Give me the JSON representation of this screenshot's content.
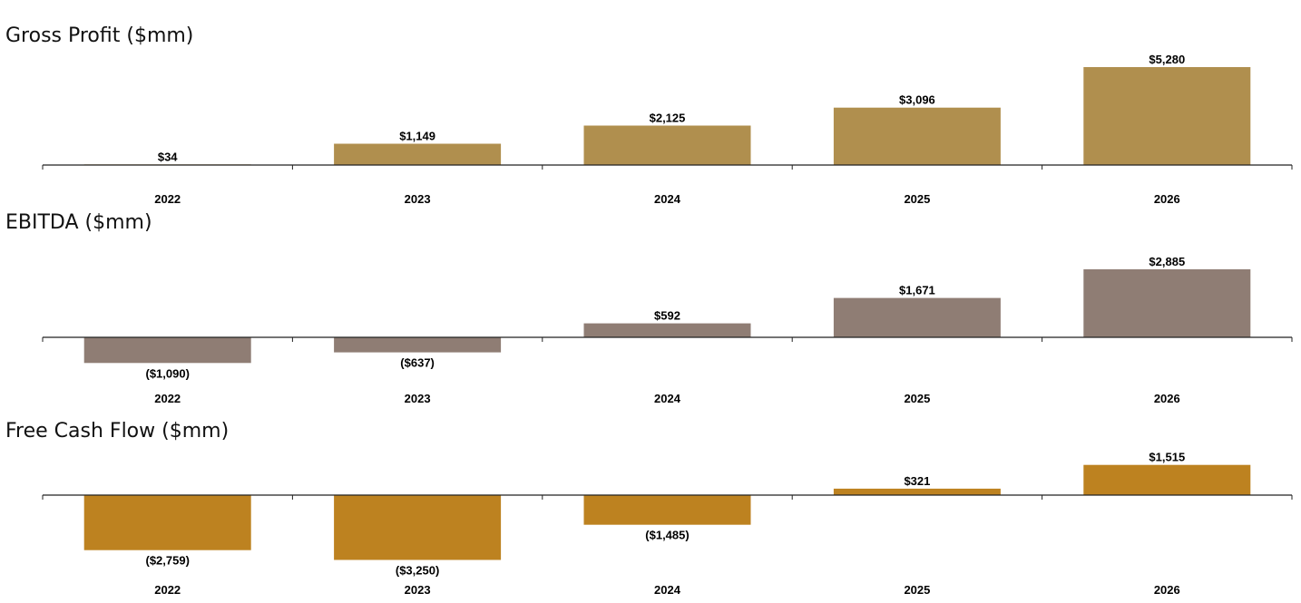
{
  "chart_data": [
    {
      "type": "bar",
      "title": "Gross Profit ($mm)",
      "categories": [
        "2022",
        "2023",
        "2024",
        "2025",
        "2026"
      ],
      "values": [
        34,
        1149,
        2125,
        3096,
        5280
      ],
      "value_labels": [
        "$34",
        "$1,149",
        "$2,125",
        "$3,096",
        "$5,280"
      ],
      "color": "#B08F4E",
      "xlabel": "",
      "ylabel": "",
      "ylim": [
        0,
        5280
      ],
      "grid": false
    },
    {
      "type": "bar",
      "title": "EBITDA ($mm)",
      "categories": [
        "2022",
        "2023",
        "2024",
        "2025",
        "2026"
      ],
      "values": [
        -1090,
        -637,
        592,
        1671,
        2885
      ],
      "value_labels": [
        "($1,090)",
        "($637)",
        "$592",
        "$1,671",
        "$2,885"
      ],
      "color": "#8F7D74",
      "xlabel": "",
      "ylabel": "",
      "ylim": [
        -1090,
        2885
      ],
      "grid": false
    },
    {
      "type": "bar",
      "title": "Free Cash Flow ($mm)",
      "categories": [
        "2022",
        "2023",
        "2024",
        "2025",
        "2026"
      ],
      "values": [
        -2759,
        -3250,
        -1485,
        321,
        1515
      ],
      "value_labels": [
        "($2,759)",
        "($3,250)",
        "($1,485)",
        "$321",
        "$1,515"
      ],
      "color": "#BD8220",
      "xlabel": "",
      "ylabel": "",
      "ylim": [
        -3250,
        1515
      ],
      "grid": false
    }
  ]
}
